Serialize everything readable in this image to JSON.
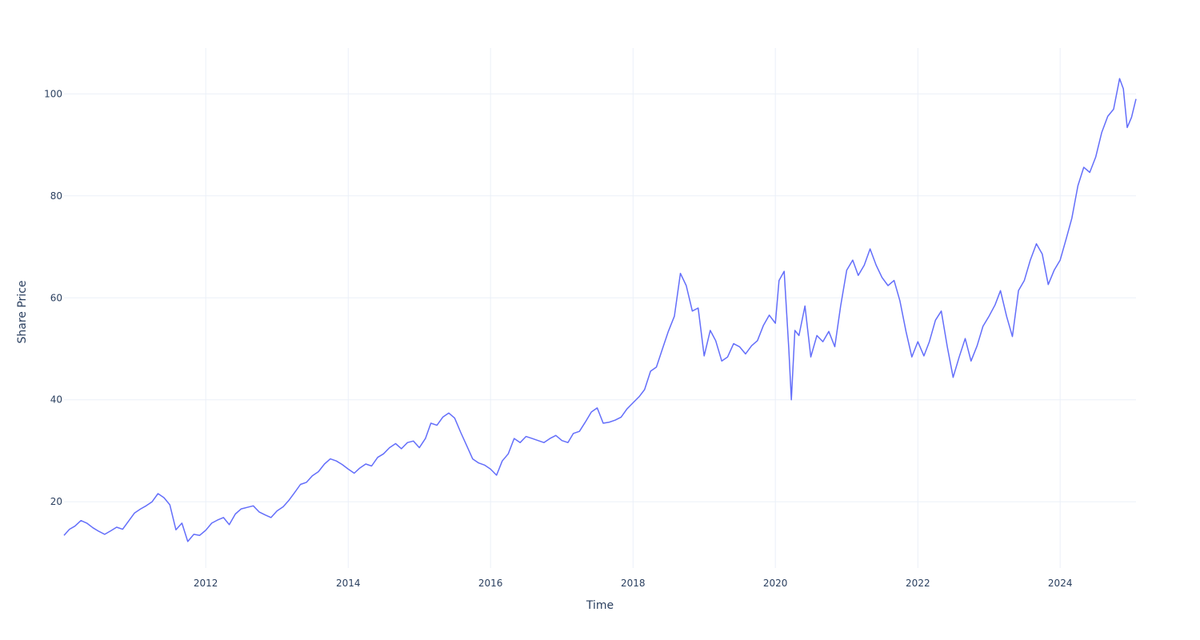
{
  "chart_data": {
    "type": "line",
    "title": "",
    "xlabel": "Time",
    "ylabel": "Share Price",
    "x_range": [
      "2010-01-04",
      "2025-01-24"
    ],
    "ylim": [
      7.0,
      109.0
    ],
    "x_ticks": [
      "2012",
      "2014",
      "2016",
      "2018",
      "2020",
      "2022",
      "2024"
    ],
    "y_ticks": [
      20,
      40,
      60,
      80,
      100
    ],
    "grid": true,
    "legend": "none",
    "series": [
      {
        "color": "#636efa",
        "points": [
          [
            "2010-01-04",
            13.4
          ],
          [
            "2010-02-01",
            14.6
          ],
          [
            "2010-03-01",
            15.2
          ],
          [
            "2010-04-01",
            16.3
          ],
          [
            "2010-05-01",
            15.8
          ],
          [
            "2010-06-01",
            14.9
          ],
          [
            "2010-07-01",
            14.2
          ],
          [
            "2010-08-01",
            13.6
          ],
          [
            "2010-09-01",
            14.3
          ],
          [
            "2010-10-01",
            15.0
          ],
          [
            "2010-11-01",
            14.6
          ],
          [
            "2010-12-01",
            16.2
          ],
          [
            "2011-01-01",
            17.8
          ],
          [
            "2011-02-01",
            18.6
          ],
          [
            "2011-03-01",
            19.2
          ],
          [
            "2011-04-01",
            20.0
          ],
          [
            "2011-05-01",
            21.6
          ],
          [
            "2011-06-01",
            20.8
          ],
          [
            "2011-07-01",
            19.4
          ],
          [
            "2011-08-01",
            14.5
          ],
          [
            "2011-09-01",
            15.8
          ],
          [
            "2011-10-01",
            12.2
          ],
          [
            "2011-11-01",
            13.6
          ],
          [
            "2011-12-01",
            13.4
          ],
          [
            "2012-01-01",
            14.4
          ],
          [
            "2012-02-01",
            15.8
          ],
          [
            "2012-03-01",
            16.4
          ],
          [
            "2012-04-01",
            16.9
          ],
          [
            "2012-05-01",
            15.5
          ],
          [
            "2012-06-01",
            17.6
          ],
          [
            "2012-07-01",
            18.6
          ],
          [
            "2012-08-01",
            18.9
          ],
          [
            "2012-09-01",
            19.2
          ],
          [
            "2012-10-01",
            18.0
          ],
          [
            "2012-11-01",
            17.4
          ],
          [
            "2012-12-01",
            16.9
          ],
          [
            "2013-01-01",
            18.2
          ],
          [
            "2013-02-01",
            19.0
          ],
          [
            "2013-03-01",
            20.2
          ],
          [
            "2013-04-01",
            21.8
          ],
          [
            "2013-05-01",
            23.4
          ],
          [
            "2013-06-01",
            23.8
          ],
          [
            "2013-07-01",
            25.1
          ],
          [
            "2013-08-01",
            25.9
          ],
          [
            "2013-09-01",
            27.4
          ],
          [
            "2013-10-01",
            28.4
          ],
          [
            "2013-11-01",
            28.0
          ],
          [
            "2013-12-01",
            27.3
          ],
          [
            "2014-01-01",
            26.4
          ],
          [
            "2014-02-01",
            25.6
          ],
          [
            "2014-03-01",
            26.6
          ],
          [
            "2014-04-01",
            27.4
          ],
          [
            "2014-05-01",
            27.0
          ],
          [
            "2014-06-01",
            28.7
          ],
          [
            "2014-07-01",
            29.4
          ],
          [
            "2014-08-01",
            30.6
          ],
          [
            "2014-09-01",
            31.4
          ],
          [
            "2014-10-01",
            30.4
          ],
          [
            "2014-11-01",
            31.6
          ],
          [
            "2014-12-01",
            31.9
          ],
          [
            "2015-01-01",
            30.6
          ],
          [
            "2015-02-01",
            32.4
          ],
          [
            "2015-03-01",
            35.4
          ],
          [
            "2015-04-01",
            35.0
          ],
          [
            "2015-05-01",
            36.6
          ],
          [
            "2015-06-01",
            37.4
          ],
          [
            "2015-07-01",
            36.4
          ],
          [
            "2015-08-01",
            33.6
          ],
          [
            "2015-09-01",
            31.0
          ],
          [
            "2015-10-01",
            28.4
          ],
          [
            "2015-11-01",
            27.6
          ],
          [
            "2015-12-01",
            27.2
          ],
          [
            "2016-01-01",
            26.4
          ],
          [
            "2016-02-01",
            25.2
          ],
          [
            "2016-03-01",
            28.0
          ],
          [
            "2016-04-01",
            29.4
          ],
          [
            "2016-05-01",
            32.4
          ],
          [
            "2016-06-01",
            31.6
          ],
          [
            "2016-07-01",
            32.8
          ],
          [
            "2016-08-01",
            32.4
          ],
          [
            "2016-09-01",
            32.0
          ],
          [
            "2016-10-01",
            31.6
          ],
          [
            "2016-11-01",
            32.4
          ],
          [
            "2016-12-01",
            33.0
          ],
          [
            "2017-01-01",
            32.0
          ],
          [
            "2017-02-01",
            31.6
          ],
          [
            "2017-03-01",
            33.4
          ],
          [
            "2017-04-01",
            33.8
          ],
          [
            "2017-05-01",
            35.6
          ],
          [
            "2017-06-01",
            37.6
          ],
          [
            "2017-07-01",
            38.4
          ],
          [
            "2017-08-01",
            35.4
          ],
          [
            "2017-09-01",
            35.6
          ],
          [
            "2017-10-01",
            36.0
          ],
          [
            "2017-11-01",
            36.6
          ],
          [
            "2017-12-01",
            38.2
          ],
          [
            "2018-01-01",
            39.4
          ],
          [
            "2018-02-01",
            40.6
          ],
          [
            "2018-03-01",
            42.0
          ],
          [
            "2018-04-01",
            45.6
          ],
          [
            "2018-05-01",
            46.4
          ],
          [
            "2018-06-01",
            50.0
          ],
          [
            "2018-07-01",
            53.4
          ],
          [
            "2018-08-01",
            56.4
          ],
          [
            "2018-09-01",
            64.8
          ],
          [
            "2018-10-01",
            62.4
          ],
          [
            "2018-11-01",
            57.4
          ],
          [
            "2018-12-01",
            58.0
          ],
          [
            "2019-01-01",
            48.6
          ],
          [
            "2019-02-01",
            53.6
          ],
          [
            "2019-03-01",
            51.6
          ],
          [
            "2019-04-01",
            47.6
          ],
          [
            "2019-05-01",
            48.4
          ],
          [
            "2019-06-01",
            51.0
          ],
          [
            "2019-07-01",
            50.4
          ],
          [
            "2019-08-01",
            49.0
          ],
          [
            "2019-09-01",
            50.6
          ],
          [
            "2019-10-01",
            51.6
          ],
          [
            "2019-11-01",
            54.6
          ],
          [
            "2019-12-01",
            56.6
          ],
          [
            "2020-01-01",
            55.0
          ],
          [
            "2020-01-20",
            63.4
          ],
          [
            "2020-02-15",
            65.2
          ],
          [
            "2020-03-10",
            50.0
          ],
          [
            "2020-03-23",
            40.0
          ],
          [
            "2020-04-10",
            53.6
          ],
          [
            "2020-05-01",
            52.6
          ],
          [
            "2020-06-01",
            58.4
          ],
          [
            "2020-07-01",
            48.4
          ],
          [
            "2020-08-01",
            52.6
          ],
          [
            "2020-09-01",
            51.4
          ],
          [
            "2020-10-01",
            53.4
          ],
          [
            "2020-11-01",
            50.4
          ],
          [
            "2020-12-01",
            58.4
          ],
          [
            "2021-01-01",
            65.4
          ],
          [
            "2021-02-01",
            67.4
          ],
          [
            "2021-03-01",
            64.4
          ],
          [
            "2021-04-01",
            66.4
          ],
          [
            "2021-05-01",
            69.6
          ],
          [
            "2021-06-01",
            66.4
          ],
          [
            "2021-07-01",
            64.0
          ],
          [
            "2021-08-01",
            62.4
          ],
          [
            "2021-09-01",
            63.4
          ],
          [
            "2021-10-01",
            59.4
          ],
          [
            "2021-11-01",
            53.4
          ],
          [
            "2021-12-01",
            48.4
          ],
          [
            "2022-01-01",
            51.4
          ],
          [
            "2022-02-01",
            48.6
          ],
          [
            "2022-03-01",
            51.4
          ],
          [
            "2022-04-01",
            55.6
          ],
          [
            "2022-05-01",
            57.4
          ],
          [
            "2022-06-01",
            50.4
          ],
          [
            "2022-07-01",
            44.4
          ],
          [
            "2022-08-01",
            48.4
          ],
          [
            "2022-09-01",
            52.0
          ],
          [
            "2022-10-01",
            47.6
          ],
          [
            "2022-11-01",
            50.6
          ],
          [
            "2022-12-01",
            54.4
          ],
          [
            "2023-01-01",
            56.4
          ],
          [
            "2023-02-01",
            58.6
          ],
          [
            "2023-03-01",
            61.4
          ],
          [
            "2023-04-01",
            56.4
          ],
          [
            "2023-05-01",
            52.4
          ],
          [
            "2023-06-01",
            61.4
          ],
          [
            "2023-07-01",
            63.4
          ],
          [
            "2023-08-01",
            67.4
          ],
          [
            "2023-09-01",
            70.6
          ],
          [
            "2023-10-01",
            68.6
          ],
          [
            "2023-11-01",
            62.6
          ],
          [
            "2023-12-01",
            65.4
          ],
          [
            "2024-01-01",
            67.4
          ],
          [
            "2024-02-01",
            71.6
          ],
          [
            "2024-03-01",
            75.6
          ],
          [
            "2024-04-01",
            82.0
          ],
          [
            "2024-05-01",
            85.6
          ],
          [
            "2024-06-01",
            84.6
          ],
          [
            "2024-07-01",
            87.6
          ],
          [
            "2024-08-01",
            92.4
          ],
          [
            "2024-09-01",
            95.6
          ],
          [
            "2024-10-01",
            97.0
          ],
          [
            "2024-11-01",
            103.0
          ],
          [
            "2024-11-20",
            101.0
          ],
          [
            "2024-12-10",
            93.4
          ],
          [
            "2025-01-01",
            95.4
          ],
          [
            "2025-01-24",
            99.0
          ]
        ]
      }
    ]
  }
}
